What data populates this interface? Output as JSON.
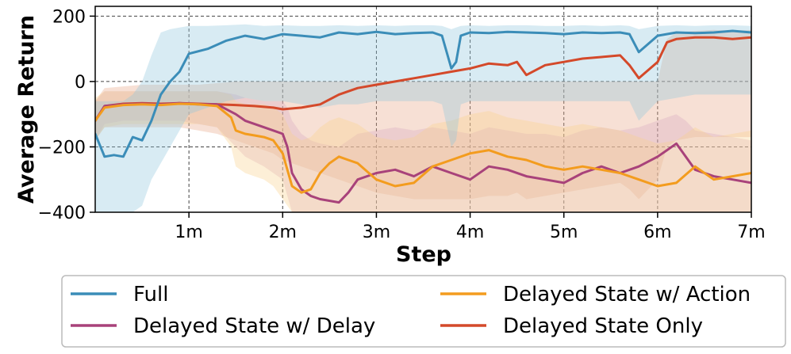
{
  "chart_data": {
    "type": "line",
    "xlabel": "Step",
    "ylabel": "Average Return",
    "xlim": [
      0,
      7000000
    ],
    "ylim": [
      -400,
      230
    ],
    "x_ticks": [
      1000000,
      2000000,
      3000000,
      4000000,
      5000000,
      6000000,
      7000000
    ],
    "x_tick_labels": [
      "1m",
      "2m",
      "3m",
      "4m",
      "5m",
      "6m",
      "7m"
    ],
    "y_ticks": [
      -400,
      -200,
      0,
      200
    ],
    "y_tick_labels": [
      "−400",
      "−200",
      "0",
      "200"
    ],
    "grid": true,
    "legend_position": "below",
    "series": [
      {
        "name": "Full",
        "color": "#3b8db8",
        "band_color": "#8ec7de",
        "x": [
          0,
          100000,
          200000,
          300000,
          400000,
          500000,
          600000,
          700000,
          800000,
          900000,
          1000000,
          1200000,
          1400000,
          1600000,
          1800000,
          2000000,
          2200000,
          2400000,
          2600000,
          2800000,
          3000000,
          3200000,
          3400000,
          3600000,
          3700000,
          3800000,
          3850000,
          3900000,
          4000000,
          4200000,
          4400000,
          4600000,
          4800000,
          5000000,
          5200000,
          5400000,
          5600000,
          5700000,
          5800000,
          6000000,
          6200000,
          6400000,
          6600000,
          6800000,
          7000000
        ],
        "values": [
          -160,
          -230,
          -225,
          -230,
          -170,
          -180,
          -120,
          -40,
          0,
          30,
          85,
          100,
          125,
          140,
          130,
          145,
          140,
          135,
          150,
          145,
          152,
          145,
          148,
          150,
          140,
          40,
          60,
          140,
          150,
          148,
          152,
          150,
          148,
          145,
          150,
          148,
          150,
          145,
          90,
          140,
          150,
          148,
          150,
          155,
          150
        ],
        "band_lower": [
          -400,
          -400,
          -400,
          -400,
          -400,
          -380,
          -300,
          -250,
          -200,
          -150,
          -100,
          -80,
          -60,
          -50,
          -60,
          -60,
          -70,
          -80,
          -70,
          -70,
          -60,
          -60,
          -60,
          -60,
          -70,
          -200,
          -180,
          -70,
          -60,
          -60,
          -60,
          -60,
          -60,
          -60,
          -60,
          -60,
          -60,
          -60,
          -120,
          -60,
          -50,
          -40,
          -40,
          -40,
          -40
        ],
        "band_upper": [
          -60,
          -60,
          -60,
          -60,
          -40,
          0,
          80,
          150,
          160,
          165,
          170,
          170,
          172,
          175,
          170,
          172,
          170,
          170,
          172,
          170,
          172,
          170,
          172,
          172,
          170,
          160,
          165,
          170,
          172,
          170,
          172,
          172,
          170,
          170,
          172,
          170,
          172,
          170,
          160,
          170,
          172,
          170,
          172,
          172,
          170
        ]
      },
      {
        "name": "Delayed State w/ Delay",
        "color": "#a8427a",
        "band_color": "#d7a8c4",
        "x": [
          0,
          100000,
          300000,
          500000,
          700000,
          900000,
          1100000,
          1300000,
          1500000,
          1600000,
          1800000,
          1900000,
          2000000,
          2050000,
          2100000,
          2200000,
          2300000,
          2400000,
          2600000,
          2700000,
          2800000,
          3000000,
          3200000,
          3400000,
          3600000,
          3800000,
          4000000,
          4200000,
          4400000,
          4600000,
          4800000,
          5000000,
          5200000,
          5400000,
          5600000,
          5800000,
          6000000,
          6100000,
          6200000,
          6300000,
          6400000,
          6600000,
          6800000,
          7000000
        ],
        "values": [
          -120,
          -75,
          -70,
          -68,
          -70,
          -66,
          -70,
          -70,
          -100,
          -120,
          -140,
          -150,
          -160,
          -200,
          -280,
          -330,
          -350,
          -360,
          -370,
          -340,
          -300,
          -280,
          -270,
          -290,
          -260,
          -280,
          -300,
          -260,
          -270,
          -290,
          -300,
          -310,
          -280,
          -260,
          -280,
          -260,
          -230,
          -210,
          -190,
          -230,
          -270,
          -290,
          -300,
          -310
        ],
        "band_lower": [
          -180,
          -130,
          -120,
          -120,
          -120,
          -120,
          -130,
          -140,
          -200,
          -230,
          -260,
          -280,
          -300,
          -350,
          -400,
          -400,
          -400,
          -400,
          -400,
          -400,
          -400,
          -400,
          -400,
          -400,
          -400,
          -400,
          -400,
          -400,
          -400,
          -400,
          -400,
          -400,
          -400,
          -400,
          -400,
          -400,
          -400,
          -400,
          -400,
          -400,
          -400,
          -400,
          -400,
          -400
        ],
        "band_upper": [
          -60,
          -30,
          -30,
          -30,
          -30,
          -30,
          -30,
          -30,
          -40,
          -50,
          -60,
          -60,
          -60,
          -80,
          -120,
          -160,
          -180,
          -190,
          -200,
          -180,
          -160,
          -150,
          -140,
          -150,
          -140,
          -150,
          -160,
          -140,
          -150,
          -160,
          -160,
          -170,
          -150,
          -140,
          -150,
          -140,
          -120,
          -110,
          -100,
          -120,
          -150,
          -160,
          -170,
          -180
        ]
      },
      {
        "name": "Delayed State w/ Action",
        "color": "#f39c1e",
        "band_color": "#f8d08c",
        "x": [
          0,
          100000,
          300000,
          500000,
          700000,
          900000,
          1100000,
          1300000,
          1450000,
          1500000,
          1600000,
          1700000,
          1800000,
          1900000,
          2000000,
          2100000,
          2200000,
          2300000,
          2400000,
          2500000,
          2600000,
          2700000,
          2800000,
          3000000,
          3200000,
          3400000,
          3600000,
          3800000,
          4000000,
          4200000,
          4400000,
          4600000,
          4800000,
          5000000,
          5200000,
          5400000,
          5600000,
          5800000,
          6000000,
          6200000,
          6400000,
          6600000,
          6800000,
          7000000
        ],
        "values": [
          -120,
          -80,
          -72,
          -70,
          -72,
          -68,
          -70,
          -75,
          -110,
          -150,
          -160,
          -165,
          -170,
          -180,
          -220,
          -320,
          -340,
          -330,
          -280,
          -250,
          -230,
          -240,
          -250,
          -300,
          -320,
          -310,
          -260,
          -240,
          -220,
          -210,
          -230,
          -240,
          -260,
          -270,
          -260,
          -270,
          -280,
          -300,
          -320,
          -310,
          -260,
          -300,
          -290,
          -280
        ],
        "band_lower": [
          -180,
          -140,
          -130,
          -130,
          -130,
          -130,
          -130,
          -140,
          -200,
          -260,
          -280,
          -290,
          -300,
          -320,
          -360,
          -400,
          -400,
          -400,
          -400,
          -400,
          -400,
          -400,
          -400,
          -400,
          -400,
          -400,
          -400,
          -400,
          -400,
          -400,
          -400,
          -400,
          -400,
          -400,
          -400,
          -400,
          -400,
          -400,
          -400,
          -400,
          -400,
          -400,
          -400,
          -400
        ],
        "band_upper": [
          -50,
          -30,
          -30,
          -30,
          -30,
          -30,
          -30,
          -30,
          -40,
          -60,
          -70,
          -70,
          -70,
          -80,
          -100,
          -160,
          -180,
          -170,
          -140,
          -120,
          -110,
          -120,
          -130,
          -170,
          -180,
          -170,
          -130,
          -120,
          -100,
          -90,
          -110,
          -120,
          -130,
          -140,
          -130,
          -140,
          -150,
          -170,
          -190,
          -180,
          -140,
          -170,
          -160,
          -150
        ]
      },
      {
        "name": "Delayed State Only",
        "color": "#d4492a",
        "band_color": "#e8a587",
        "x": [
          0,
          100000,
          300000,
          500000,
          700000,
          900000,
          1100000,
          1300000,
          1500000,
          1700000,
          1900000,
          2000000,
          2200000,
          2400000,
          2600000,
          2800000,
          3000000,
          3200000,
          3400000,
          3600000,
          3800000,
          4000000,
          4200000,
          4400000,
          4500000,
          4600000,
          4800000,
          5000000,
          5200000,
          5400000,
          5600000,
          5700000,
          5800000,
          6000000,
          6100000,
          6200000,
          6400000,
          6600000,
          6800000,
          7000000
        ],
        "values": [
          -120,
          -75,
          -68,
          -66,
          -68,
          -66,
          -68,
          -70,
          -72,
          -75,
          -80,
          -85,
          -80,
          -70,
          -40,
          -20,
          -10,
          0,
          10,
          20,
          30,
          40,
          55,
          50,
          60,
          20,
          50,
          60,
          70,
          75,
          80,
          50,
          10,
          60,
          120,
          130,
          135,
          135,
          130,
          135
        ],
        "band_lower": [
          -180,
          -140,
          -140,
          -140,
          -140,
          -140,
          -150,
          -160,
          -180,
          -200,
          -220,
          -240,
          -260,
          -280,
          -300,
          -320,
          -340,
          -350,
          -360,
          -360,
          -360,
          -360,
          -350,
          -350,
          -340,
          -360,
          -350,
          -340,
          -330,
          -320,
          -310,
          -330,
          -360,
          -300,
          -200,
          -180,
          -170,
          -170,
          -170,
          -170
        ],
        "band_upper": [
          -60,
          -20,
          -15,
          -10,
          -10,
          -10,
          -10,
          -5,
          0,
          0,
          0,
          0,
          0,
          0,
          0,
          0,
          0,
          0,
          0,
          0,
          0,
          0,
          0,
          0,
          0,
          0,
          0,
          0,
          0,
          0,
          0,
          0,
          0,
          0,
          130,
          150,
          155,
          158,
          155,
          158
        ]
      }
    ]
  }
}
